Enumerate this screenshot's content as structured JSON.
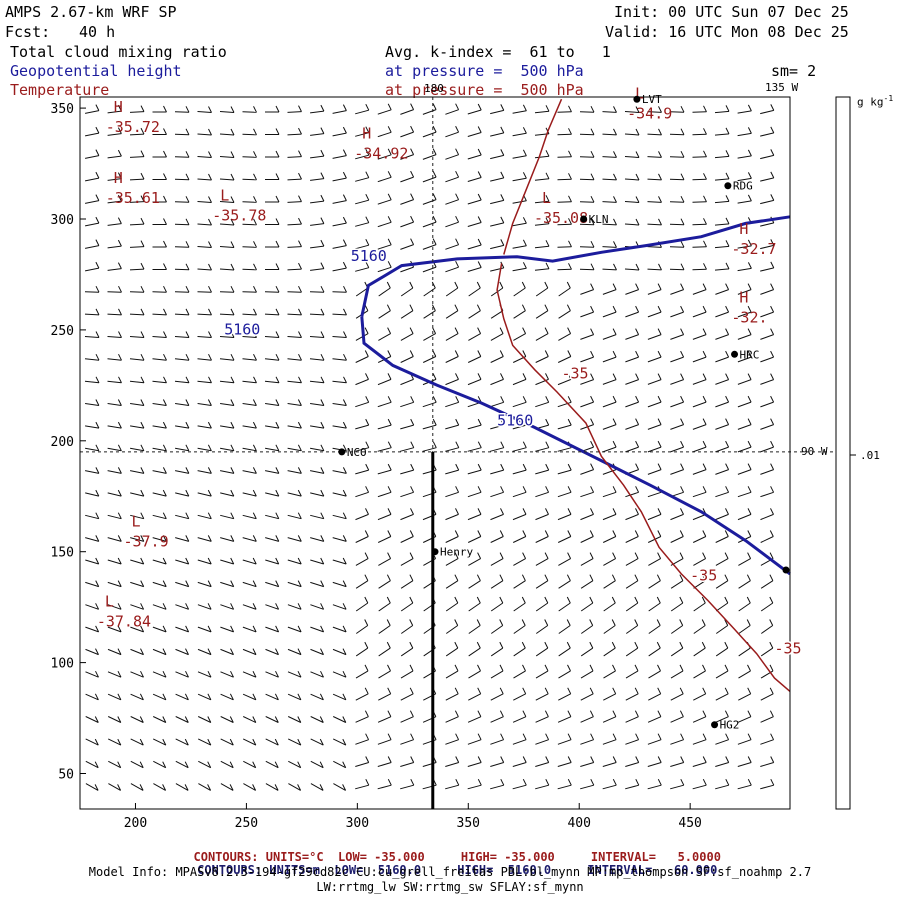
{
  "header": {
    "model": "AMPS 2.67-km WRF SP",
    "forecast_label": "Fcst:",
    "forecast_hours": "40 h",
    "init": "Init: 00 UTC Sun 07 Dec 25",
    "valid": "Valid: 16 UTC Mon 08 Dec 25",
    "field1": "Total cloud mixing ratio",
    "field2": "Geopotential height",
    "field3": "Temperature",
    "avg": "Avg. k-index =  61 to   1",
    "pressure1": "at pressure =  500 hPa",
    "pressure2": "at pressure =  500 hPa",
    "sm": "sm= 2"
  },
  "colors": {
    "height": "#1c1c9c",
    "temperature": "#9a1c1c",
    "barb": "#111111"
  },
  "axes": {
    "x_ticks": [
      "200",
      "250",
      "300",
      "350",
      "400",
      "450"
    ],
    "y_ticks": [
      "350",
      "300",
      "250",
      "200",
      "150",
      "100",
      "50"
    ],
    "lon_top": "180",
    "lon_top_right": "135 W",
    "lon_right": "90 W"
  },
  "colorbar": {
    "unit": "g kg",
    "unit_exp": "-1",
    "tick": ".01"
  },
  "stations": [
    {
      "name": "NCO",
      "x": 293,
      "y": 195
    },
    {
      "name": "Henry",
      "x": 335,
      "y": 150
    },
    {
      "name": "KLN",
      "x": 402,
      "y": 300
    },
    {
      "name": "RDG",
      "x": 467,
      "y": 315
    },
    {
      "name": "HRC",
      "x": 470,
      "y": 239
    },
    {
      "name": "HG2",
      "x": 461,
      "y": 72
    },
    {
      "name": "LVT",
      "x": 426,
      "y": 354
    }
  ],
  "extremes": [
    {
      "type": "H",
      "value": "-35.72",
      "x": 192,
      "y": 342
    },
    {
      "type": "H",
      "value": "-34.92",
      "x": 304,
      "y": 330
    },
    {
      "type": "H",
      "value": "-35.61",
      "x": 192,
      "y": 310
    },
    {
      "type": "L",
      "value": "-35.78",
      "x": 240,
      "y": 302
    },
    {
      "type": "L",
      "value": "-35.08",
      "x": 385,
      "y": 301
    },
    {
      "type": "L",
      "value": "-34.9",
      "x": 427,
      "y": 348
    },
    {
      "type": "H",
      "value": "-32.7",
      "x": 474,
      "y": 287
    },
    {
      "type": "H",
      "value": "-32.",
      "x": 474,
      "y": 256
    },
    {
      "type": "L",
      "value": "-37.9",
      "x": 200,
      "y": 155
    },
    {
      "type": "L",
      "value": "-37.84",
      "x": 188,
      "y": 119
    }
  ],
  "contour_labels": {
    "height": [
      {
        "value": "5160",
        "x": 297,
        "y": 281
      },
      {
        "value": "5160",
        "x": 240,
        "y": 248
      },
      {
        "value": "5160",
        "x": 363,
        "y": 207
      }
    ],
    "temperature": [
      {
        "value": "-35",
        "x": 392,
        "y": 228
      },
      {
        "value": "-35",
        "x": 450,
        "y": 137
      },
      {
        "value": "-35",
        "x": 488,
        "y": 104
      }
    ]
  },
  "footer": {
    "line1_label": "CONTOURS:",
    "line1_units": "UNITS=°C",
    "line1_low": "LOW= -35.000",
    "line1_high": "HIGH= -35.000",
    "line1_interval": "INTERVAL=   5.0000",
    "line2_label": "CONTOURS:",
    "line2_units": "UNITS=m",
    "line2_low": "LOW=  5160.0",
    "line2_high": "HIGH=  5160.0",
    "line2_interval": "INTERVAL=   60.000",
    "model_info": "Model Info: MPASv8.2.3-194-gf29cd82c CU:cu_grell_freitas PBL:bl_mynn MP:mp_thompson SF:sf_noahmp 2.7",
    "model_info2": "LW:rrtmg_lw SW:rrtmg_sw SFLAY:sf_mynn"
  }
}
